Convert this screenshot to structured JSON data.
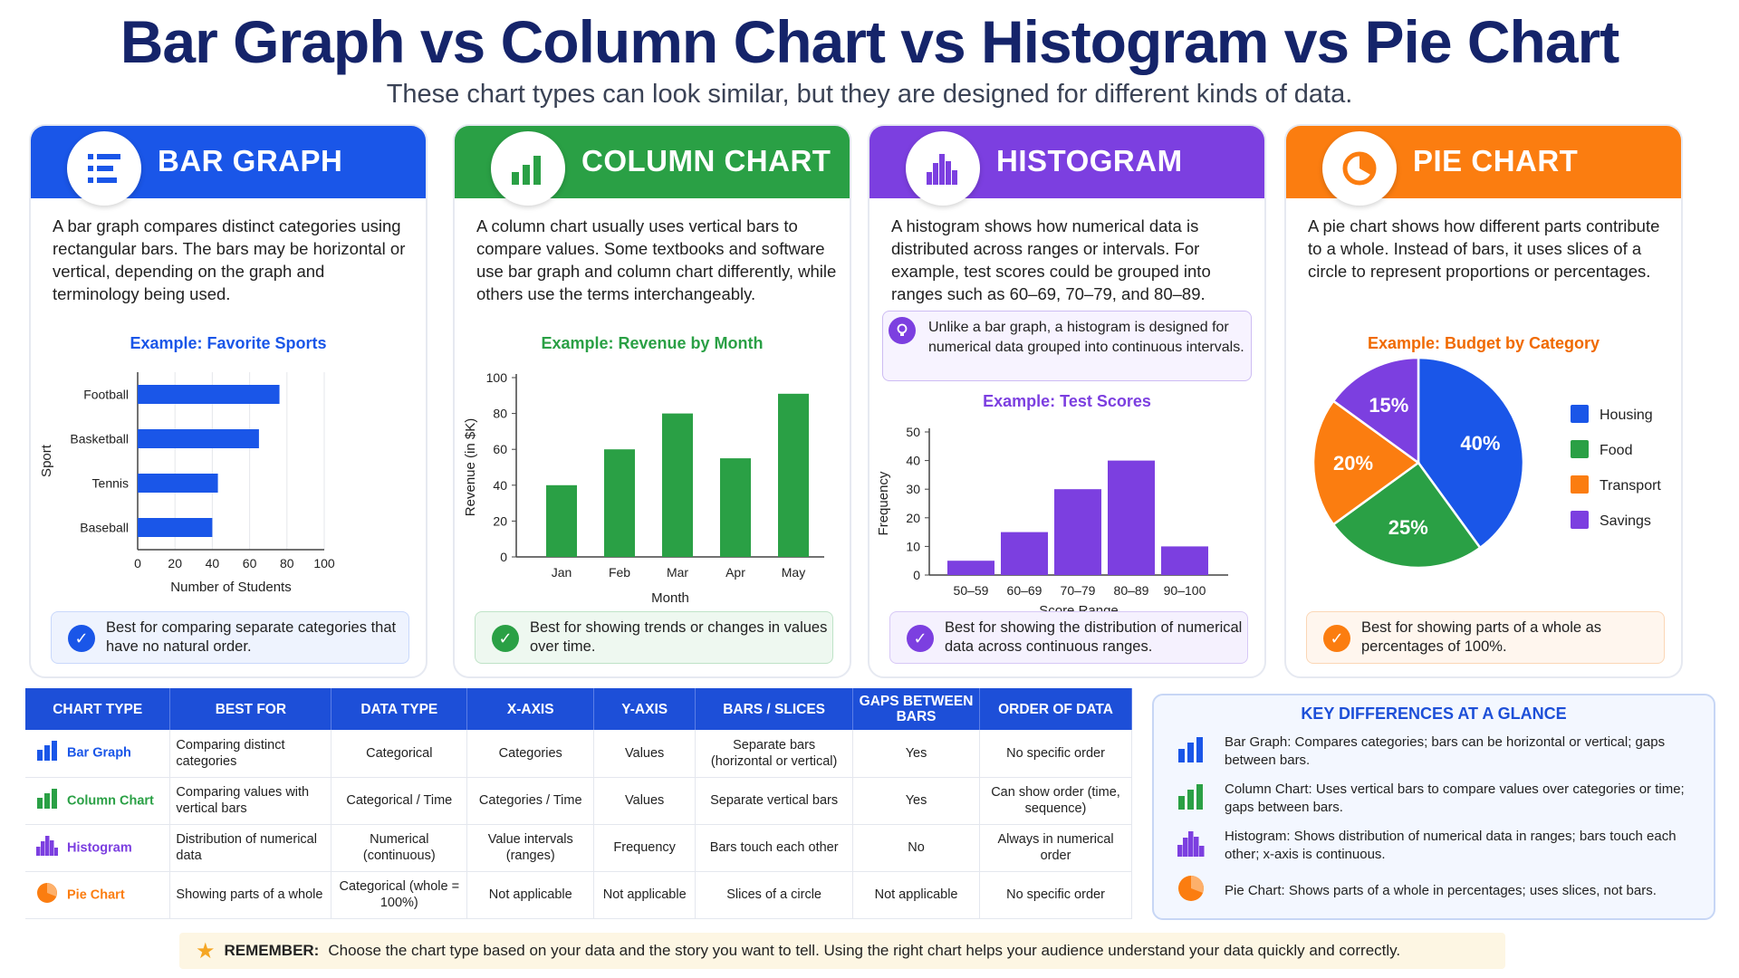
{
  "title": "Bar Graph vs Column Chart vs Histogram vs Pie Chart",
  "subtitle": "These chart types can look similar, but they are designed for different kinds of data.",
  "colors": {
    "blue": "#1a56e8",
    "green": "#2aa045",
    "purple": "#7c3fe0",
    "orange": "#fb7d10"
  },
  "cards": {
    "bar": {
      "name": "BAR GRAPH",
      "desc": "A bar graph compares distinct categories using rectangular bars. The bars may be horizontal or vertical, depending on the graph and terminology being used.",
      "example": "Example: Favorite Sports",
      "best": "Best for comparing separate categories that have no natural order."
    },
    "column": {
      "name": "COLUMN CHART",
      "desc": "A column chart usually uses vertical bars to compare values. Some textbooks and software use bar graph and column chart differently, while others use the terms interchangeably.",
      "example": "Example: Revenue by Month",
      "best": "Best for showing trends or changes in values over time."
    },
    "histogram": {
      "name": "HISTOGRAM",
      "desc": "A histogram shows how numerical data is distributed across ranges or intervals. For example, test scores could be grouped into ranges such as 60–69, 70–79, and 80–89.",
      "note": "Unlike a bar graph, a histogram is designed for numerical data grouped into continuous intervals.",
      "example": "Example: Test Scores",
      "best": "Best for showing the distribution of numerical data across continuous ranges."
    },
    "pie": {
      "name": "PIE CHART",
      "desc": "A pie chart shows how different parts contribute to a whole. Instead of bars, it uses slices of a circle to represent proportions or percentages.",
      "example": "Example: Budget by Category",
      "best": "Best for showing parts of a whole as percentages of 100%."
    }
  },
  "chart_data": [
    {
      "type": "bar",
      "orientation": "horizontal",
      "title": "Example: Favorite Sports",
      "categories": [
        "Football",
        "Basketball",
        "Tennis",
        "Baseball"
      ],
      "values": [
        76,
        65,
        43,
        40
      ],
      "xlabel": "Number of Students",
      "ylabel": "Sport",
      "xlim": [
        0,
        100
      ],
      "xticks": [
        "0",
        "20",
        "40",
        "60",
        "80",
        "100"
      ],
      "color": "#1a56e8"
    },
    {
      "type": "bar",
      "orientation": "vertical",
      "title": "Example: Revenue by Month",
      "categories": [
        "Jan",
        "Feb",
        "Mar",
        "Apr",
        "May"
      ],
      "values": [
        40,
        60,
        80,
        55,
        91
      ],
      "xlabel": "Month",
      "ylabel": "Revenue (in $K)",
      "ylim": [
        0,
        100
      ],
      "yticks": [
        "0",
        "20",
        "40",
        "60",
        "80",
        "100"
      ],
      "color": "#2aa045"
    },
    {
      "type": "bar",
      "orientation": "vertical",
      "histogram": true,
      "title": "Example: Test Scores",
      "categories": [
        "50–59",
        "60–69",
        "70–79",
        "80–89",
        "90–100"
      ],
      "values": [
        5,
        15,
        30,
        40,
        10
      ],
      "xlabel": "Score Range",
      "ylabel": "Frequency",
      "ylim": [
        0,
        50
      ],
      "yticks": [
        "0",
        "10",
        "20",
        "30",
        "40",
        "50"
      ],
      "color": "#7c3fe0"
    },
    {
      "type": "pie",
      "title": "Example: Budget by Category",
      "labels": [
        "Housing",
        "Food",
        "Transport",
        "Savings"
      ],
      "values": [
        40,
        25,
        20,
        15
      ],
      "value_labels": [
        "40%",
        "25%",
        "20%",
        "15%"
      ],
      "colors": [
        "#1a56e8",
        "#2aa045",
        "#fb7d10",
        "#7c3fe0"
      ],
      "legend": "right"
    }
  ],
  "table": {
    "headers": [
      "CHART TYPE",
      "BEST FOR",
      "DATA TYPE",
      "X-AXIS",
      "Y-AXIS",
      "BARS / SLICES",
      "GAPS BETWEEN BARS",
      "ORDER OF DATA"
    ],
    "rows": [
      {
        "icon": "bar-chart-icon",
        "color": "#1a56e8",
        "cells": [
          "Bar Graph",
          "Comparing distinct categories",
          "Categorical",
          "Categories",
          "Values",
          "Separate bars (horizontal or vertical)",
          "Yes",
          "No specific order"
        ]
      },
      {
        "icon": "column-chart-icon",
        "color": "#2aa045",
        "cells": [
          "Column Chart",
          "Comparing values with vertical bars",
          "Categorical / Time",
          "Categories / Time",
          "Values",
          "Separate vertical bars",
          "Yes",
          "Can show order (time, sequence)"
        ]
      },
      {
        "icon": "histogram-icon",
        "color": "#7c3fe0",
        "cells": [
          "Histogram",
          "Distribution of numerical data",
          "Numerical (continuous)",
          "Value intervals (ranges)",
          "Frequency",
          "Bars touch each other",
          "No",
          "Always in numerical order"
        ]
      },
      {
        "icon": "pie-chart-icon",
        "color": "#fb7d10",
        "cells": [
          "Pie Chart",
          "Showing parts of a whole",
          "Categorical (whole = 100%)",
          "Not applicable",
          "Not applicable",
          "Slices of a circle",
          "Not applicable",
          "No specific order"
        ]
      }
    ]
  },
  "key": {
    "title": "KEY DIFFERENCES AT A GLANCE",
    "items": [
      "Bar Graph: Compares categories; bars can be horizontal or vertical; gaps between bars.",
      "Column Chart: Uses vertical bars to compare values over categories or time; gaps between bars.",
      "Histogram: Shows distribution of numerical data in ranges; bars touch each other; x-axis is continuous.",
      "Pie Chart: Shows parts of a whole in percentages; uses slices, not bars."
    ]
  },
  "remember": {
    "label": "REMEMBER:",
    "text": "Choose the chart type based on your data and the story you want to tell. Using the right chart helps your audience understand your data quickly and correctly."
  }
}
